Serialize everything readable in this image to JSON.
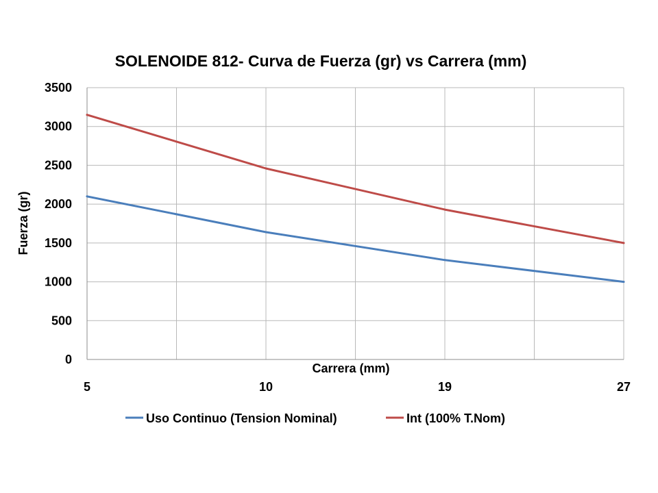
{
  "chart_data": {
    "type": "line",
    "title": "SOLENOIDE 812- Curva de Fuerza (gr) vs Carrera (mm)",
    "xlabel": "Carrera (mm)",
    "ylabel": "Fuerza (gr)",
    "categories": [
      "5",
      "10",
      "19",
      "27"
    ],
    "ylim": [
      0,
      3500
    ],
    "yticks": [
      0,
      500,
      1000,
      1500,
      2000,
      2500,
      3000,
      3500
    ],
    "grid": true,
    "legend_position": "bottom",
    "series": [
      {
        "name": "Uso Continuo (Tension Nominal)",
        "color": "#4a7ebb",
        "values": [
          2100,
          1640,
          1280,
          1000
        ]
      },
      {
        "name": "Int (100% T.Nom)",
        "color": "#be4b48",
        "values": [
          3150,
          2460,
          1930,
          1500
        ]
      }
    ]
  }
}
